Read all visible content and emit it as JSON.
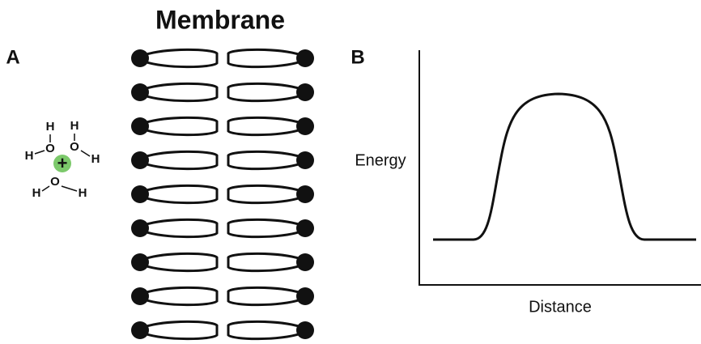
{
  "title": "Membrane",
  "panel_a": {
    "label": "A",
    "charge": "+",
    "atoms": [
      "H",
      "O",
      "H",
      "H",
      "O",
      "H",
      "O",
      "H",
      "H"
    ]
  },
  "panel_b": {
    "label": "B",
    "y_label": "Energy",
    "x_label": "Distance"
  }
}
